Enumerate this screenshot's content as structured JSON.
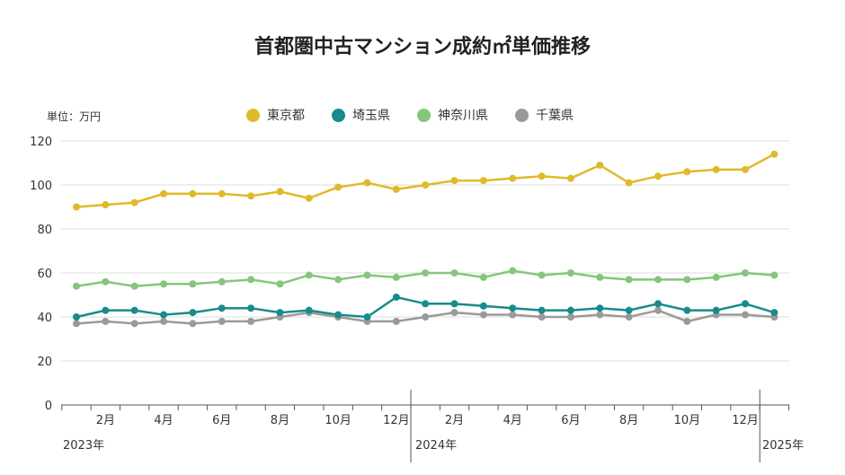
{
  "chart_data": {
    "type": "line",
    "title": "首都圏中古マンション成約㎡単価推移",
    "unit_label": "単位：万円",
    "x": [
      "2023-01",
      "2023-02",
      "2023-03",
      "2023-04",
      "2023-05",
      "2023-06",
      "2023-07",
      "2023-08",
      "2023-09",
      "2023-10",
      "2023-11",
      "2023-12",
      "2024-01",
      "2024-02",
      "2024-03",
      "2024-04",
      "2024-05",
      "2024-06",
      "2024-07",
      "2024-08",
      "2024-09",
      "2024-10",
      "2024-11",
      "2024-12",
      "2025-01"
    ],
    "x_tick_labels": [
      "2月",
      "4月",
      "6月",
      "8月",
      "10月",
      "12月",
      "2月",
      "4月",
      "6月",
      "8月",
      "10月",
      "12月"
    ],
    "year_labels": [
      "2023年",
      "2024年",
      "2025年"
    ],
    "ylim": [
      0,
      120
    ],
    "y_ticks": [
      "0",
      "20",
      "40",
      "60",
      "80",
      "100",
      "120"
    ],
    "grid": true,
    "legend_position": "top",
    "series": [
      {
        "name": "東京都",
        "color": "#e0b92a",
        "values": [
          90,
          91,
          92,
          96,
          96,
          96,
          95,
          97,
          94,
          99,
          101,
          98,
          100,
          102,
          102,
          103,
          104,
          103,
          109,
          101,
          104,
          106,
          107,
          107,
          114
        ]
      },
      {
        "name": "埼玉県",
        "color": "#1a8a8a",
        "values": [
          40,
          43,
          43,
          41,
          42,
          44,
          44,
          42,
          43,
          41,
          40,
          49,
          46,
          46,
          45,
          44,
          43,
          43,
          44,
          43,
          46,
          43,
          43,
          46,
          42
        ]
      },
      {
        "name": "神奈川県",
        "color": "#85c57c",
        "values": [
          54,
          56,
          54,
          55,
          55,
          56,
          57,
          55,
          59,
          57,
          59,
          58,
          60,
          60,
          58,
          61,
          59,
          60,
          58,
          57,
          57,
          57,
          58,
          60,
          59
        ]
      },
      {
        "name": "千葉県",
        "color": "#9a9a9a",
        "values": [
          37,
          38,
          37,
          38,
          37,
          38,
          38,
          40,
          42,
          40,
          38,
          38,
          40,
          42,
          41,
          41,
          40,
          40,
          41,
          40,
          43,
          38,
          41,
          41,
          40
        ]
      }
    ]
  }
}
